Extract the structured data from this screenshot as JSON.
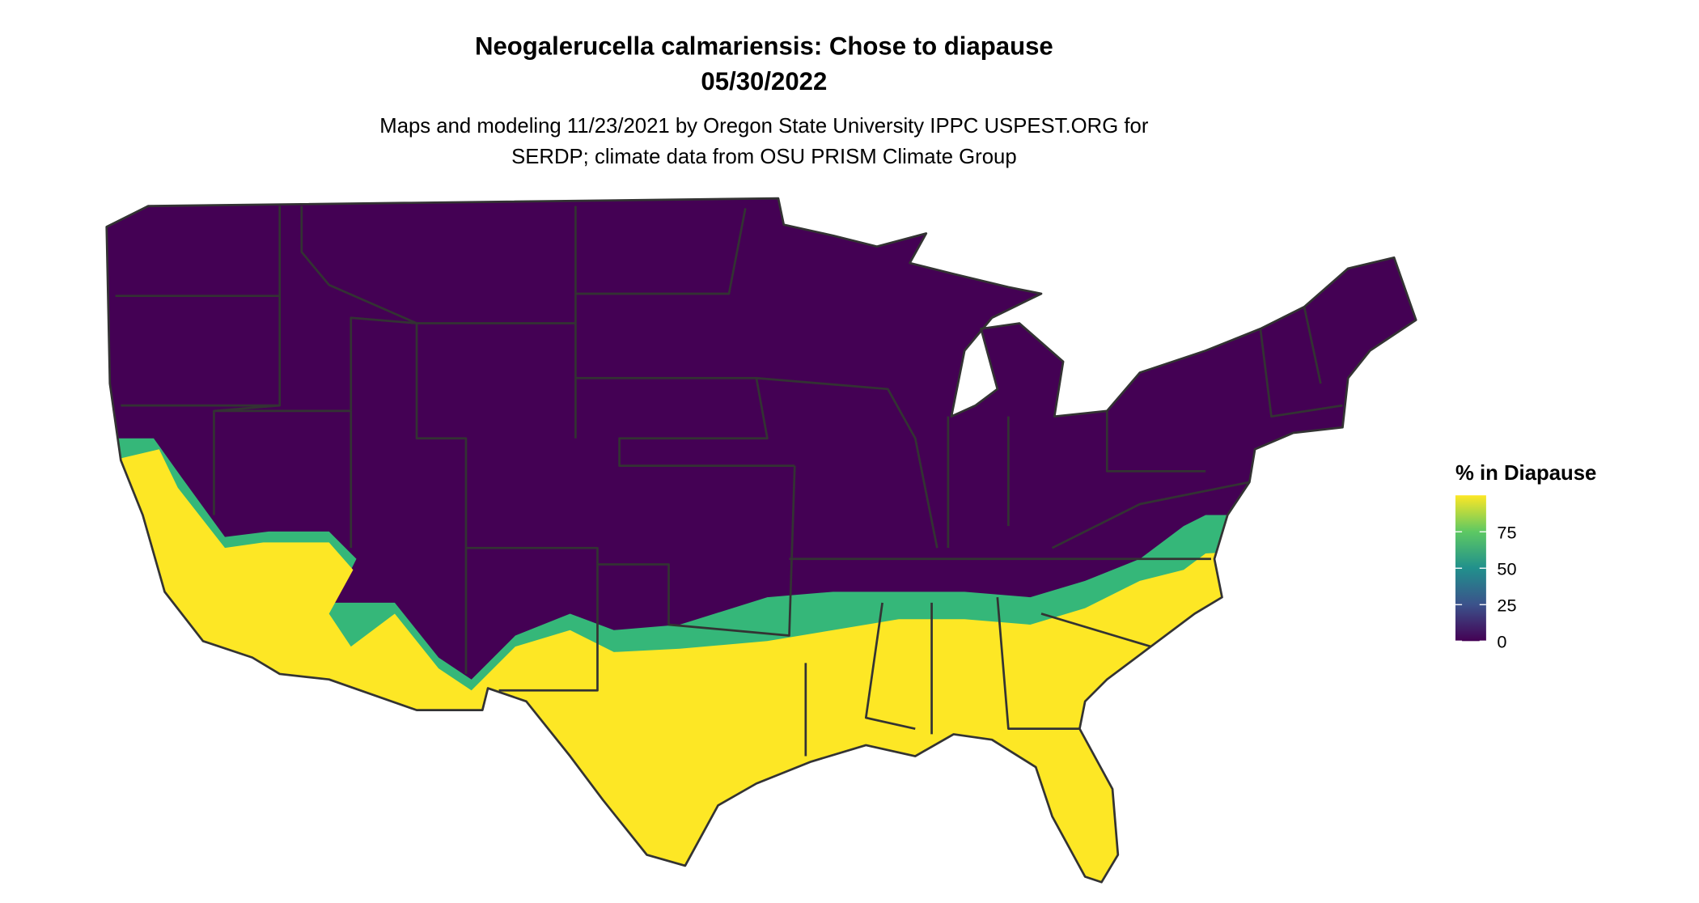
{
  "map": {
    "title": [
      "Neogalerucella calmariensis: Chose to diapause",
      "05/30/2022"
    ],
    "subtitle": [
      "Maps and modeling 11/23/2021 by Oregon State University IPPC USPEST.ORG for",
      "SERDP; climate data from OSU PRISM Climate Group"
    ],
    "legend": {
      "title": "% in Diapause",
      "range": [
        0,
        100
      ],
      "ticks": [
        0,
        25,
        50,
        75
      ]
    }
  }
}
